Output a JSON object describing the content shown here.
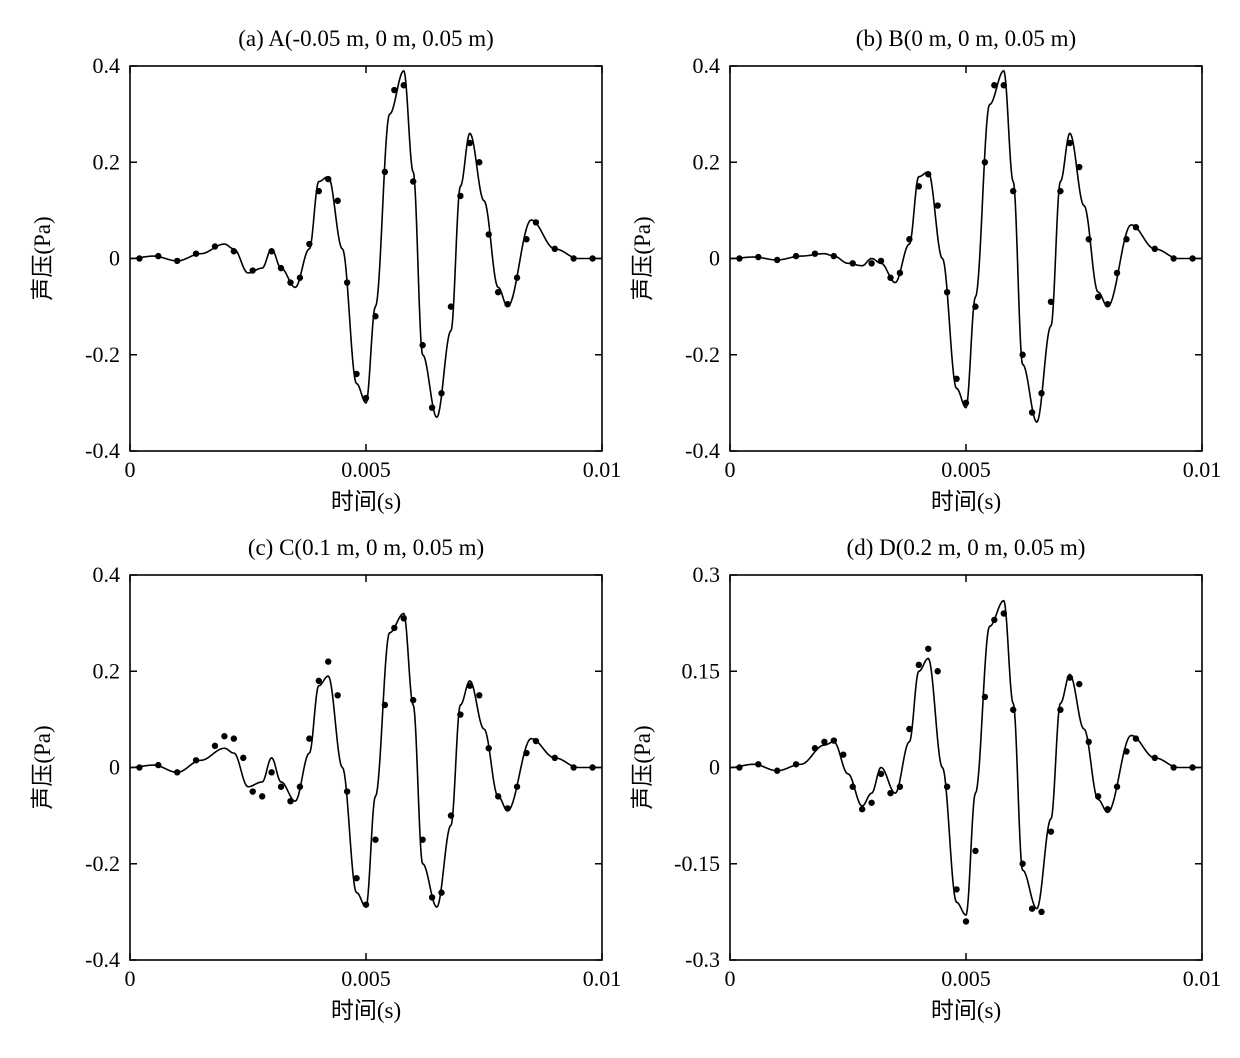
{
  "figure": {
    "background_color": "#ffffff",
    "axis_color": "#000000",
    "line_color": "#000000",
    "dot_color": "#000000",
    "title_fontsize": 23,
    "tick_fontsize": 22,
    "label_fontsize": 23,
    "line_width": 1.6,
    "dot_radius": 3.2,
    "panels": [
      {
        "id": "a",
        "title": "(a) A(-0.05 m, 0 m, 0.05 m)",
        "xlabel": "时间(s)",
        "ylabel": "声压(Pa)",
        "xlim": [
          0,
          0.01
        ],
        "ylim": [
          -0.4,
          0.4
        ],
        "xticks": [
          0,
          0.005,
          0.01
        ],
        "xtick_labels": [
          "0",
          "0.005",
          "0.01"
        ],
        "yticks": [
          -0.4,
          -0.2,
          0,
          0.2,
          0.4
        ],
        "ytick_labels": [
          "-0.4",
          "-0.2",
          "0",
          "0.2",
          "0.4"
        ],
        "line": {
          "x": [
            0,
            0.0005,
            0.001,
            0.0015,
            0.002,
            0.0022,
            0.0025,
            0.0028,
            0.003,
            0.0032,
            0.0035,
            0.0038,
            0.004,
            0.0042,
            0.0045,
            0.0048,
            0.005,
            0.0052,
            0.0055,
            0.0058,
            0.006,
            0.0062,
            0.0065,
            0.0068,
            0.007,
            0.0072,
            0.0075,
            0.0078,
            0.008,
            0.0085,
            0.009,
            0.0095,
            0.01
          ],
          "y": [
            0,
            0.005,
            -0.005,
            0.01,
            0.03,
            0.02,
            -0.03,
            -0.02,
            0.02,
            -0.02,
            -0.06,
            0.02,
            0.16,
            0.17,
            0.02,
            -0.26,
            -0.3,
            -0.1,
            0.3,
            0.39,
            0.18,
            -0.2,
            -0.33,
            -0.15,
            0.15,
            0.26,
            0.12,
            -0.06,
            -0.1,
            0.08,
            0.02,
            0.0,
            0.0
          ]
        },
        "dots": {
          "x": [
            0.0002,
            0.0006,
            0.001,
            0.0014,
            0.0018,
            0.0022,
            0.0026,
            0.003,
            0.0032,
            0.0034,
            0.0036,
            0.0038,
            0.004,
            0.0042,
            0.0044,
            0.0046,
            0.0048,
            0.005,
            0.0052,
            0.0054,
            0.0056,
            0.0058,
            0.006,
            0.0062,
            0.0064,
            0.0066,
            0.0068,
            0.007,
            0.0072,
            0.0074,
            0.0076,
            0.0078,
            0.008,
            0.0082,
            0.0084,
            0.0086,
            0.009,
            0.0094,
            0.0098
          ],
          "y": [
            0,
            0.005,
            -0.005,
            0.01,
            0.025,
            0.015,
            -0.025,
            0.015,
            -0.02,
            -0.05,
            -0.04,
            0.03,
            0.14,
            0.165,
            0.12,
            -0.05,
            -0.24,
            -0.29,
            -0.12,
            0.18,
            0.35,
            0.36,
            0.16,
            -0.18,
            -0.31,
            -0.28,
            -0.1,
            0.13,
            0.24,
            0.2,
            0.05,
            -0.07,
            -0.095,
            -0.04,
            0.04,
            0.075,
            0.02,
            0.0,
            0.0
          ]
        }
      },
      {
        "id": "b",
        "title": "(b) B(0 m, 0 m, 0.05 m)",
        "xlabel": "时间(s)",
        "ylabel": "声压(Pa)",
        "xlim": [
          0,
          0.01
        ],
        "ylim": [
          -0.4,
          0.4
        ],
        "xticks": [
          0,
          0.005,
          0.01
        ],
        "xtick_labels": [
          "0",
          "0.005",
          "0.01"
        ],
        "yticks": [
          -0.4,
          -0.2,
          0,
          0.2,
          0.4
        ],
        "ytick_labels": [
          "-0.4",
          "-0.2",
          "0",
          "0.2",
          "0.4"
        ],
        "line": {
          "x": [
            0,
            0.0005,
            0.001,
            0.0015,
            0.002,
            0.0022,
            0.0025,
            0.0028,
            0.003,
            0.0032,
            0.0035,
            0.0038,
            0.004,
            0.0042,
            0.0045,
            0.0048,
            0.005,
            0.0052,
            0.0055,
            0.0058,
            0.006,
            0.0062,
            0.0065,
            0.0068,
            0.007,
            0.0072,
            0.0075,
            0.0078,
            0.008,
            0.0085,
            0.009,
            0.0095,
            0.01
          ],
          "y": [
            0,
            0.003,
            -0.003,
            0.005,
            0.01,
            0.005,
            -0.01,
            -0.015,
            0.0,
            -0.01,
            -0.05,
            0.03,
            0.17,
            0.18,
            0.0,
            -0.27,
            -0.31,
            -0.08,
            0.32,
            0.39,
            0.16,
            -0.22,
            -0.34,
            -0.14,
            0.16,
            0.26,
            0.11,
            -0.07,
            -0.1,
            0.07,
            0.02,
            0.0,
            0.0
          ]
        },
        "dots": {
          "x": [
            0.0002,
            0.0006,
            0.001,
            0.0014,
            0.0018,
            0.0022,
            0.0026,
            0.003,
            0.0032,
            0.0034,
            0.0036,
            0.0038,
            0.004,
            0.0042,
            0.0044,
            0.0046,
            0.0048,
            0.005,
            0.0052,
            0.0054,
            0.0056,
            0.0058,
            0.006,
            0.0062,
            0.0064,
            0.0066,
            0.0068,
            0.007,
            0.0072,
            0.0074,
            0.0076,
            0.0078,
            0.008,
            0.0082,
            0.0084,
            0.0086,
            0.009,
            0.0094,
            0.0098
          ],
          "y": [
            0,
            0.003,
            -0.003,
            0.005,
            0.01,
            0.005,
            -0.01,
            -0.01,
            -0.005,
            -0.04,
            -0.03,
            0.04,
            0.15,
            0.175,
            0.11,
            -0.07,
            -0.25,
            -0.3,
            -0.1,
            0.2,
            0.36,
            0.36,
            0.14,
            -0.2,
            -0.32,
            -0.28,
            -0.09,
            0.14,
            0.24,
            0.19,
            0.04,
            -0.08,
            -0.095,
            -0.03,
            0.04,
            0.065,
            0.02,
            0.0,
            0.0
          ]
        }
      },
      {
        "id": "c",
        "title": "(c) C(0.1 m, 0 m, 0.05 m)",
        "xlabel": "时间(s)",
        "ylabel": "声压(Pa)",
        "xlim": [
          0,
          0.01
        ],
        "ylim": [
          -0.4,
          0.4
        ],
        "xticks": [
          0,
          0.005,
          0.01
        ],
        "xtick_labels": [
          "0",
          "0.005",
          "0.01"
        ],
        "yticks": [
          -0.4,
          -0.2,
          0,
          0.2,
          0.4
        ],
        "ytick_labels": [
          "-0.4",
          "-0.2",
          "0",
          "0.2",
          "0.4"
        ],
        "line": {
          "x": [
            0,
            0.0005,
            0.001,
            0.0015,
            0.002,
            0.0022,
            0.0025,
            0.0028,
            0.003,
            0.0032,
            0.0035,
            0.0038,
            0.004,
            0.0042,
            0.0045,
            0.0048,
            0.005,
            0.0052,
            0.0055,
            0.0058,
            0.006,
            0.0062,
            0.0065,
            0.0068,
            0.007,
            0.0072,
            0.0075,
            0.0078,
            0.008,
            0.0085,
            0.009,
            0.0095,
            0.01
          ],
          "y": [
            0,
            0.005,
            -0.01,
            0.015,
            0.04,
            0.03,
            -0.04,
            -0.03,
            0.02,
            -0.03,
            -0.07,
            0.03,
            0.17,
            0.19,
            0.0,
            -0.26,
            -0.29,
            -0.06,
            0.28,
            0.32,
            0.13,
            -0.2,
            -0.29,
            -0.12,
            0.13,
            0.18,
            0.08,
            -0.06,
            -0.09,
            0.06,
            0.02,
            0.0,
            0.0
          ]
        },
        "dots": {
          "x": [
            0.0002,
            0.0006,
            0.001,
            0.0014,
            0.0018,
            0.002,
            0.0022,
            0.0024,
            0.0026,
            0.0028,
            0.003,
            0.0032,
            0.0034,
            0.0036,
            0.0038,
            0.004,
            0.0042,
            0.0044,
            0.0046,
            0.0048,
            0.005,
            0.0052,
            0.0054,
            0.0056,
            0.0058,
            0.006,
            0.0062,
            0.0064,
            0.0066,
            0.0068,
            0.007,
            0.0072,
            0.0074,
            0.0076,
            0.0078,
            0.008,
            0.0082,
            0.0084,
            0.0086,
            0.009,
            0.0094,
            0.0098
          ],
          "y": [
            0,
            0.005,
            -0.01,
            0.015,
            0.045,
            0.065,
            0.06,
            0.02,
            -0.05,
            -0.06,
            -0.01,
            -0.04,
            -0.07,
            -0.04,
            0.06,
            0.18,
            0.22,
            0.15,
            -0.05,
            -0.23,
            -0.285,
            -0.15,
            0.13,
            0.29,
            0.31,
            0.14,
            -0.15,
            -0.27,
            -0.26,
            -0.1,
            0.11,
            0.17,
            0.15,
            0.04,
            -0.06,
            -0.085,
            -0.04,
            0.03,
            0.055,
            0.02,
            0.0,
            0.0
          ]
        }
      },
      {
        "id": "d",
        "title": "(d) D(0.2 m, 0 m, 0.05 m)",
        "xlabel": "时间(s)",
        "ylabel": "声压(Pa)",
        "xlim": [
          0,
          0.01
        ],
        "ylim": [
          -0.3,
          0.3
        ],
        "xticks": [
          0,
          0.005,
          0.01
        ],
        "xtick_labels": [
          "0",
          "0.005",
          "0.01"
        ],
        "yticks": [
          -0.3,
          -0.15,
          0,
          0.15,
          0.3
        ],
        "ytick_labels": [
          "-0.3",
          "-0.15",
          "0",
          "0.15",
          "0.3"
        ],
        "line": {
          "x": [
            0,
            0.0005,
            0.001,
            0.0015,
            0.002,
            0.0022,
            0.0025,
            0.0028,
            0.003,
            0.0032,
            0.0035,
            0.0038,
            0.004,
            0.0042,
            0.0045,
            0.0048,
            0.005,
            0.0052,
            0.0055,
            0.0058,
            0.006,
            0.0062,
            0.0065,
            0.0068,
            0.007,
            0.0072,
            0.0075,
            0.0078,
            0.008,
            0.0085,
            0.009,
            0.0095,
            0.01
          ],
          "y": [
            0,
            0.005,
            -0.005,
            0.005,
            0.035,
            0.04,
            -0.01,
            -0.06,
            -0.04,
            0.0,
            -0.04,
            0.04,
            0.15,
            0.17,
            0.0,
            -0.21,
            -0.23,
            -0.04,
            0.22,
            0.26,
            0.1,
            -0.16,
            -0.22,
            -0.08,
            0.1,
            0.145,
            0.06,
            -0.05,
            -0.07,
            0.05,
            0.015,
            0.0,
            0.0
          ]
        },
        "dots": {
          "x": [
            0.0002,
            0.0006,
            0.001,
            0.0014,
            0.0018,
            0.002,
            0.0022,
            0.0024,
            0.0026,
            0.0028,
            0.003,
            0.0032,
            0.0034,
            0.0036,
            0.0038,
            0.004,
            0.0042,
            0.0044,
            0.0046,
            0.0048,
            0.005,
            0.0052,
            0.0054,
            0.0056,
            0.0058,
            0.006,
            0.0062,
            0.0064,
            0.0066,
            0.0068,
            0.007,
            0.0072,
            0.0074,
            0.0076,
            0.0078,
            0.008,
            0.0082,
            0.0084,
            0.0086,
            0.009,
            0.0094,
            0.0098
          ],
          "y": [
            0,
            0.005,
            -0.005,
            0.005,
            0.03,
            0.04,
            0.042,
            0.02,
            -0.03,
            -0.065,
            -0.055,
            -0.01,
            -0.04,
            -0.03,
            0.06,
            0.16,
            0.185,
            0.15,
            -0.03,
            -0.19,
            -0.24,
            -0.13,
            0.11,
            0.23,
            0.24,
            0.09,
            -0.15,
            -0.22,
            -0.225,
            -0.1,
            0.09,
            0.14,
            0.13,
            0.04,
            -0.045,
            -0.065,
            -0.03,
            0.025,
            0.045,
            0.015,
            0.0,
            0.0
          ]
        }
      }
    ]
  }
}
